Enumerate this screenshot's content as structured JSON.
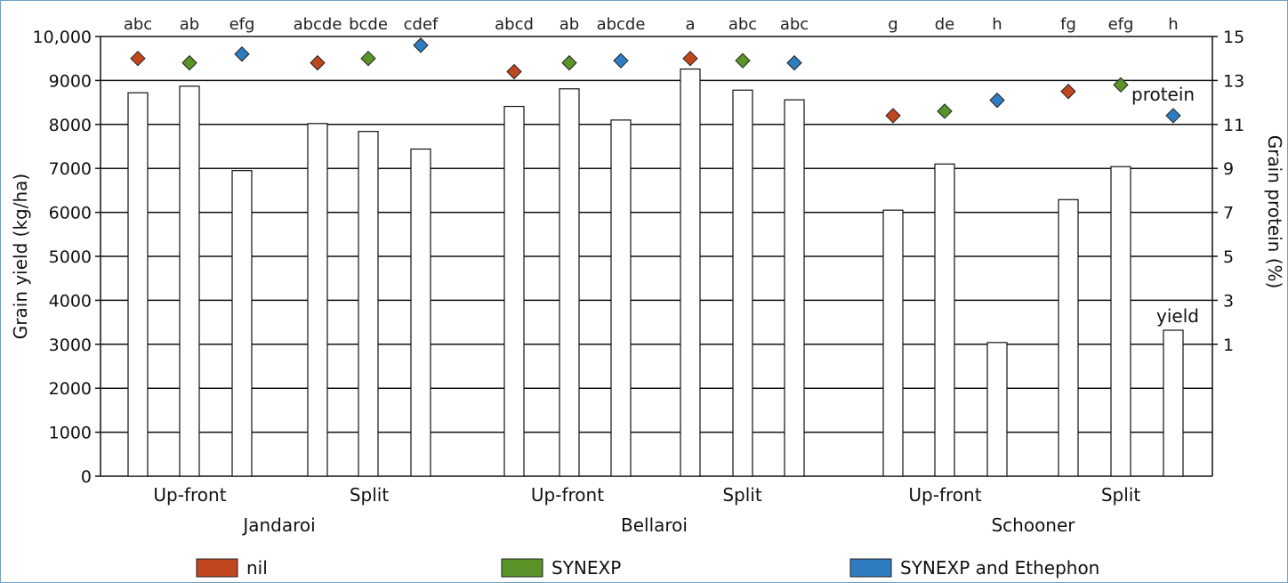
{
  "chart_data": {
    "type": "bar",
    "ylabel": "Grain yield (kg/ha)",
    "y2label": "Grain protein (%)",
    "ylim": [
      0,
      10000
    ],
    "y2lim": [
      -5,
      15
    ],
    "yticks": [
      "0",
      "1000",
      "2000",
      "3000",
      "4000",
      "5000",
      "6000",
      "7000",
      "8000",
      "9000",
      "10,000"
    ],
    "y2ticks": [
      "1",
      "3",
      "5",
      "7",
      "9",
      "11",
      "13",
      "15"
    ],
    "grid": true,
    "varieties": [
      "Jandaroi",
      "Bellaroi",
      "Schooner"
    ],
    "timing_labels": [
      "Up-front",
      "Split"
    ],
    "groups": [
      {
        "variety": "Jandaroi",
        "timing": "Up-front"
      },
      {
        "variety": "Jandaroi",
        "timing": "Split"
      },
      {
        "variety": "Bellaroi",
        "timing": "Up-front"
      },
      {
        "variety": "Bellaroi",
        "timing": "Split"
      },
      {
        "variety": "Schooner",
        "timing": "Up-front"
      },
      {
        "variety": "Schooner",
        "timing": "Split"
      }
    ],
    "treatments": [
      {
        "name": "nil",
        "color": "#c0461f"
      },
      {
        "name": "SYNEXP",
        "color": "#5a9328"
      },
      {
        "name": "SYNEXP and Ethephon",
        "color": "#2f7cc1"
      }
    ],
    "yield": [
      8720,
      8870,
      6950,
      8020,
      7840,
      7440,
      8410,
      8810,
      8100,
      9260,
      8780,
      8560,
      6050,
      7100,
      3040,
      6290,
      7040,
      3320
    ],
    "protein": [
      14.0,
      13.8,
      14.2,
      13.8,
      14.0,
      14.6,
      13.4,
      13.8,
      13.9,
      14.0,
      13.9,
      13.8,
      11.4,
      11.6,
      12.1,
      12.5,
      12.8,
      11.4
    ],
    "significance": [
      "abc",
      "ab",
      "efg",
      "abcde",
      "bcde",
      "cdef",
      "abcd",
      "ab",
      "abcde",
      "a",
      "abc",
      "abc",
      "g",
      "de",
      "h",
      "fg",
      "efg",
      "h"
    ],
    "annotations": {
      "protein": "protein",
      "yield": "yield"
    }
  }
}
